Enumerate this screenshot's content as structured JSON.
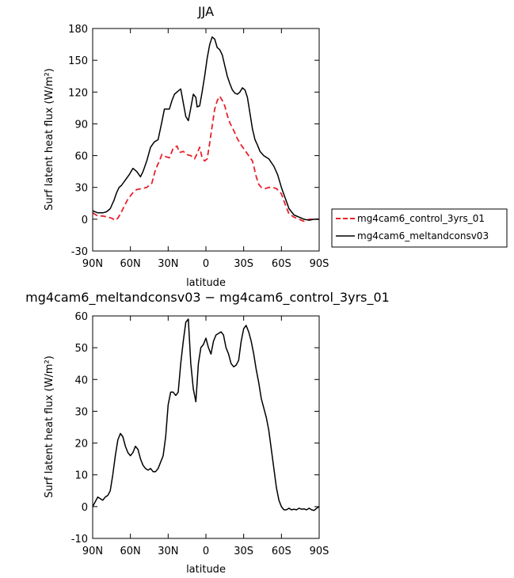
{
  "chart_data": [
    {
      "type": "line",
      "title": "JJA",
      "xlabel": "latitude",
      "ylabel": "Surf latent heat flux (W/m²)",
      "xlim": [
        90,
        -90
      ],
      "ylim": [
        -30,
        180
      ],
      "x_ticks": [
        90,
        60,
        30,
        0,
        -30,
        -60,
        -90
      ],
      "x_tick_labels": [
        "90N",
        "60N",
        "30N",
        "0",
        "30S",
        "60S",
        "90S"
      ],
      "y_ticks": [
        -30,
        0,
        30,
        60,
        90,
        120,
        150,
        180
      ],
      "legend_position": "right",
      "colors": {
        "control": "#e8212b",
        "meltandconsv03": "#000000"
      },
      "series": [
        {
          "name": "mg4cam6_control_3yrs_01",
          "style": "dashed",
          "color": "#e8212b",
          "x": [
            90,
            86,
            82,
            78,
            75,
            72,
            70,
            68,
            65,
            62,
            58,
            55,
            51,
            47,
            43,
            40,
            37,
            35,
            32,
            29,
            26,
            23,
            21,
            18,
            15,
            12,
            9,
            7,
            5,
            3,
            1,
            -1,
            -3,
            -5,
            -7,
            -9,
            -11,
            -13,
            -15,
            -17,
            -19,
            -22,
            -25,
            -28,
            -31,
            -34,
            -37,
            -40,
            -42,
            -44,
            -47,
            -50,
            -53,
            -56,
            -60,
            -63,
            -66,
            -70,
            -74,
            -78,
            -82,
            -86,
            -90
          ],
          "y": [
            6,
            3,
            3,
            2,
            1,
            -1,
            1,
            5,
            12,
            19,
            25,
            28,
            29,
            30,
            34,
            47,
            55,
            61,
            59,
            58,
            67,
            69,
            63,
            64,
            61,
            60,
            57,
            62,
            68,
            58,
            55,
            57,
            72,
            88,
            104,
            112,
            116,
            112,
            107,
            98,
            91,
            84,
            76,
            70,
            65,
            60,
            55,
            40,
            33,
            30,
            29,
            30,
            30,
            29,
            24,
            14,
            5,
            2,
            0,
            -2,
            0,
            0,
            0
          ]
        },
        {
          "name": "mg4cam6_meltandconsv03",
          "style": "solid",
          "color": "#000000",
          "x": [
            90,
            86,
            82,
            79,
            76,
            73,
            71,
            69,
            67,
            64,
            61,
            58,
            55,
            52,
            50,
            47,
            44,
            41,
            38,
            35,
            33,
            31,
            29,
            27,
            25,
            22,
            20,
            18,
            16,
            14,
            12,
            10,
            8,
            7,
            5,
            3,
            1,
            -1,
            -3,
            -5,
            -7,
            -9,
            -11,
            -13,
            -15,
            -17,
            -19,
            -21,
            -23,
            -25,
            -27,
            -29,
            -31,
            -33,
            -35,
            -37,
            -39,
            -41,
            -43,
            -46,
            -50,
            -54,
            -57,
            -60,
            -63,
            -66,
            -70,
            -74,
            -78,
            -82,
            -86,
            -90
          ],
          "y": [
            8,
            6,
            6,
            7,
            10,
            18,
            25,
            30,
            32,
            37,
            42,
            48,
            45,
            40,
            45,
            55,
            68,
            73,
            75,
            92,
            104,
            104,
            104,
            112,
            118,
            121,
            123,
            110,
            97,
            93,
            105,
            118,
            115,
            106,
            107,
            120,
            135,
            152,
            165,
            172,
            170,
            162,
            160,
            155,
            145,
            135,
            128,
            122,
            119,
            118,
            120,
            124,
            122,
            115,
            100,
            85,
            75,
            70,
            64,
            60,
            57,
            50,
            42,
            30,
            20,
            10,
            4,
            2,
            0,
            -1,
            0,
            0
          ]
        }
      ]
    },
    {
      "type": "line",
      "title": "mg4cam6_meltandconsv03 − mg4cam6_control_3yrs_01",
      "xlabel": "latitude",
      "ylabel": "Surf latent heat flux (W/m²)",
      "xlim": [
        90,
        -90
      ],
      "ylim": [
        -10,
        60
      ],
      "x_ticks": [
        90,
        60,
        30,
        0,
        -30,
        -60,
        -90
      ],
      "x_tick_labels": [
        "90N",
        "60N",
        "30N",
        "0",
        "30S",
        "60S",
        "90S"
      ],
      "y_ticks": [
        -10,
        0,
        10,
        20,
        30,
        40,
        50,
        60
      ],
      "series": [
        {
          "color": "#000000",
          "style": "solid",
          "x": [
            90,
            88,
            86,
            84,
            82,
            80,
            78,
            76,
            74,
            72,
            70,
            68,
            66,
            64,
            62,
            60,
            58,
            56,
            54,
            52,
            50,
            48,
            46,
            44,
            42,
            40,
            38,
            36,
            34,
            32,
            30,
            28,
            26,
            24,
            22,
            20,
            18,
            16,
            14,
            12,
            10,
            8,
            6,
            4,
            2,
            0,
            -2,
            -4,
            -6,
            -8,
            -10,
            -12,
            -14,
            -16,
            -18,
            -20,
            -22,
            -24,
            -26,
            -28,
            -30,
            -32,
            -34,
            -36,
            -38,
            -40,
            -42,
            -44,
            -46,
            -48,
            -50,
            -52,
            -54,
            -56,
            -58,
            -60,
            -62,
            -64,
            -66,
            -68,
            -70,
            -72,
            -74,
            -76,
            -78,
            -80,
            -82,
            -84,
            -86,
            -88,
            -90
          ],
          "y": [
            0,
            1.5,
            3,
            2.5,
            2,
            3,
            3.5,
            5,
            10,
            16,
            21,
            23,
            22,
            19,
            17,
            16,
            17,
            19,
            18,
            15,
            13,
            12,
            11.5,
            12,
            11,
            11,
            12,
            14,
            16,
            22,
            32,
            36,
            36,
            35,
            36,
            45,
            52,
            58,
            59,
            45,
            37,
            33,
            45,
            50,
            51,
            53,
            50,
            48,
            52,
            54,
            54.5,
            55,
            54,
            50,
            48,
            45,
            44,
            44.5,
            46,
            52,
            56,
            57,
            55,
            52,
            48,
            43,
            39,
            34,
            31,
            28,
            24,
            18,
            12,
            6,
            2,
            0,
            -1,
            -1,
            -0.5,
            -1,
            -0.8,
            -1,
            -0.5,
            -0.8,
            -0.7,
            -1,
            -0.5,
            -1,
            -1.2,
            -0.5,
            0
          ]
        }
      ]
    }
  ]
}
